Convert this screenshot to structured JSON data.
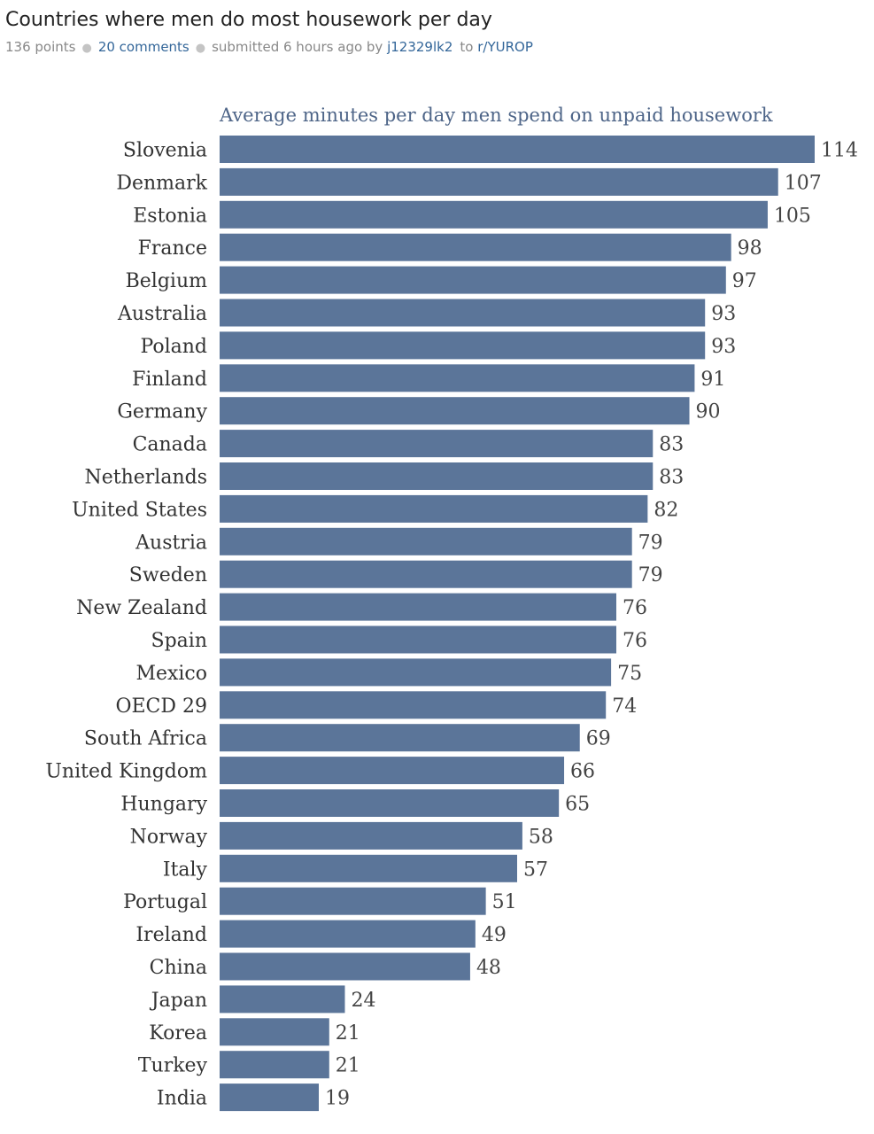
{
  "post": {
    "title": "Countries where men do most housework per day",
    "points": "136 points",
    "comments": "20 comments",
    "submitted": "submitted 6 hours ago by",
    "author": "j12329lk2",
    "to": "to",
    "subreddit": "r/YUROP"
  },
  "colors": {
    "bar": "#5b7599",
    "link": "#336699"
  },
  "chart_data": {
    "type": "bar",
    "orientation": "horizontal",
    "title": "Average minutes per day men spend on unpaid housework",
    "xlabel": "",
    "ylabel": "",
    "xlim": [
      0,
      114
    ],
    "grid": false,
    "legend": "none",
    "categories": [
      "Slovenia",
      "Denmark",
      "Estonia",
      "France",
      "Belgium",
      "Australia",
      "Poland",
      "Finland",
      "Germany",
      "Canada",
      "Netherlands",
      "United States",
      "Austria",
      "Sweden",
      "New Zealand",
      "Spain",
      "Mexico",
      "OECD 29",
      "South Africa",
      "United Kingdom",
      "Hungary",
      "Norway",
      "Italy",
      "Portugal",
      "Ireland",
      "China",
      "Japan",
      "Korea",
      "Turkey",
      "India"
    ],
    "values": [
      114,
      107,
      105,
      98,
      97,
      93,
      93,
      91,
      90,
      83,
      83,
      82,
      79,
      79,
      76,
      76,
      75,
      74,
      69,
      66,
      65,
      58,
      57,
      51,
      49,
      48,
      24,
      21,
      21,
      19
    ]
  }
}
